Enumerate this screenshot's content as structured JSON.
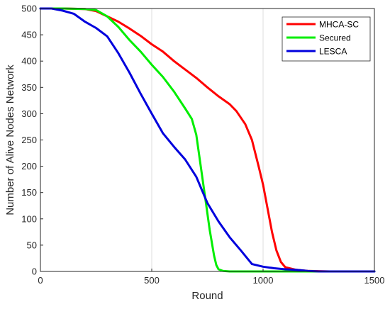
{
  "chart_data": {
    "type": "line",
    "xlabel": "Round",
    "ylabel": "Number of Alive Nodes Network",
    "xlim": [
      0,
      1500
    ],
    "ylim": [
      0,
      500
    ],
    "xticks": [
      0,
      500,
      1000,
      1500
    ],
    "yticks": [
      0,
      50,
      100,
      150,
      200,
      250,
      300,
      350,
      400,
      450,
      500
    ],
    "grid": "vertical",
    "legend_position": "top-right",
    "series": [
      {
        "name": "MHCA-SC",
        "color": "#ff0000",
        "x": [
          0,
          100,
          200,
          250,
          300,
          350,
          400,
          450,
          500,
          550,
          600,
          650,
          700,
          750,
          800,
          850,
          880,
          920,
          950,
          980,
          1000,
          1020,
          1040,
          1060,
          1080,
          1100,
          1150,
          1200,
          1300,
          1500
        ],
        "y": [
          500,
          500,
          499,
          495,
          485,
          475,
          462,
          448,
          432,
          418,
          400,
          384,
          368,
          350,
          333,
          318,
          305,
          280,
          250,
          200,
          165,
          120,
          75,
          40,
          18,
          8,
          3,
          1,
          0,
          0
        ]
      },
      {
        "name": "Secured",
        "color": "#00ee00",
        "x": [
          0,
          100,
          200,
          250,
          300,
          350,
          400,
          450,
          500,
          550,
          600,
          650,
          680,
          700,
          720,
          740,
          760,
          780,
          790,
          800,
          820,
          850,
          900,
          1000,
          1500
        ],
        "y": [
          500,
          500,
          499,
          497,
          485,
          465,
          440,
          418,
          393,
          370,
          342,
          310,
          290,
          260,
          200,
          140,
          80,
          30,
          12,
          4,
          1,
          0,
          0,
          0,
          0
        ]
      },
      {
        "name": "LESCA",
        "color": "#0000dd",
        "x": [
          0,
          50,
          100,
          150,
          200,
          250,
          300,
          350,
          400,
          450,
          500,
          550,
          600,
          650,
          700,
          750,
          800,
          850,
          900,
          950,
          1000,
          1050,
          1100,
          1150,
          1200,
          1250,
          1500
        ],
        "y": [
          500,
          500,
          496,
          490,
          475,
          463,
          447,
          415,
          378,
          338,
          300,
          263,
          237,
          213,
          180,
          130,
          95,
          65,
          40,
          14,
          9,
          6,
          4,
          3,
          1,
          0,
          0
        ]
      }
    ]
  }
}
